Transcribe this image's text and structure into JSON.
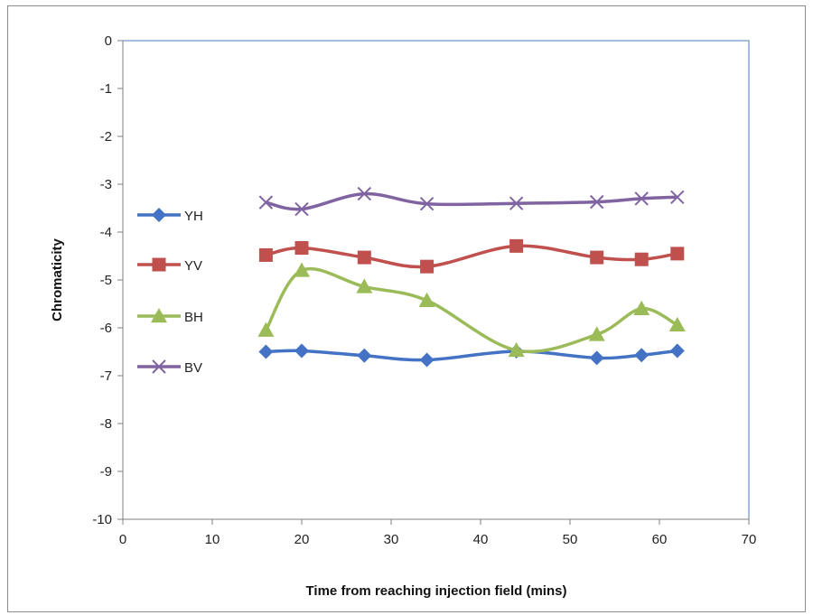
{
  "chart_data": {
    "type": "line",
    "title": "",
    "xlabel": "Time from reaching injection field (mins)",
    "ylabel": "Chromaticity",
    "xlim": [
      0,
      70
    ],
    "ylim": [
      -10,
      0
    ],
    "xticks": [
      0,
      10,
      20,
      30,
      40,
      50,
      60,
      70
    ],
    "yticks": [
      0,
      -1,
      -2,
      -3,
      -4,
      -5,
      -6,
      -7,
      -8,
      -9,
      -10
    ],
    "legend_position": "left",
    "grid": false,
    "smooth": true,
    "series": [
      {
        "name": "YH",
        "color": "#4472c4",
        "marker": "diamond",
        "x": [
          16,
          20,
          27,
          34,
          44,
          53,
          58,
          62
        ],
        "y": [
          -6.5,
          -6.48,
          -6.58,
          -6.67,
          -6.49,
          -6.63,
          -6.57,
          -6.48
        ]
      },
      {
        "name": "YV",
        "color": "#c0504d",
        "marker": "square",
        "x": [
          16,
          20,
          27,
          34,
          44,
          53,
          58,
          62
        ],
        "y": [
          -4.48,
          -4.33,
          -4.53,
          -4.72,
          -4.29,
          -4.53,
          -4.57,
          -4.45
        ]
      },
      {
        "name": "BH",
        "color": "#9bbb59",
        "marker": "triangle",
        "x": [
          16,
          20,
          27,
          34,
          44,
          53,
          58,
          62
        ],
        "y": [
          -6.05,
          -4.8,
          -5.14,
          -5.43,
          -6.47,
          -6.14,
          -5.6,
          -5.94
        ]
      },
      {
        "name": "BV",
        "color": "#8064a2",
        "marker": "x",
        "x": [
          16,
          20,
          27,
          34,
          44,
          53,
          58,
          62
        ],
        "y": [
          -3.38,
          -3.52,
          -3.2,
          -3.41,
          -3.4,
          -3.37,
          -3.3,
          -3.27
        ]
      }
    ]
  }
}
